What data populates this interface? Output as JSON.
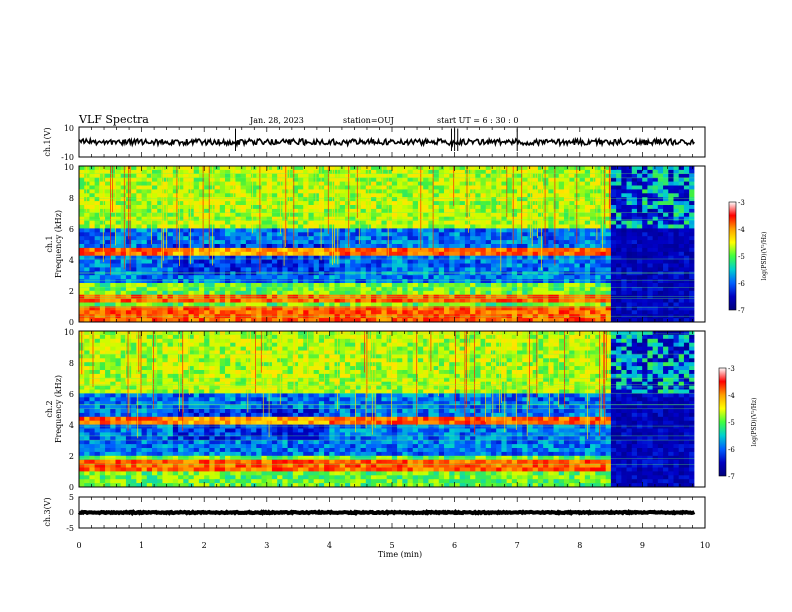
{
  "header": {
    "title": "VLF Spectra",
    "date": "Jan. 28, 2023",
    "station": "station=OUJ",
    "start": "start  UT =  6 : 30 : 0"
  },
  "colorbars": [
    {
      "label": "log(PSD)(V²/Hz)",
      "ticks": [
        "-3",
        "-4",
        "-5",
        "-6",
        "-7"
      ],
      "colors": [
        "#ffffff",
        "#ff0000",
        "#ffa000",
        "#ffff00",
        "#40ff40",
        "#00d0d0",
        "#0060ff",
        "#0000c0",
        "#00007a"
      ]
    },
    {
      "label": "log(PSD)(V²/Hz)",
      "ticks": [
        "-3",
        "-4",
        "-5",
        "-6",
        "-7"
      ],
      "colors": [
        "#ffffff",
        "#ff0000",
        "#ffa000",
        "#ffff00",
        "#40ff40",
        "#00d0d0",
        "#0060ff",
        "#0000c0",
        "#00007a"
      ]
    }
  ],
  "chart_data": [
    {
      "type": "line",
      "panel": "ch1_waveform",
      "ylabel": "ch.1(V)",
      "yticks": [
        "10",
        "-10"
      ],
      "ylim": [
        -10,
        10
      ],
      "x_range_min": [
        0,
        10
      ],
      "baseline": 0,
      "trace_color": "#000000"
    },
    {
      "type": "heatmap",
      "panel": "ch1_spectrogram",
      "ylabel": "ch.1 Frequency (kHz)",
      "ylabel_top": "ch.1",
      "ylabel_bottom": "Frequency (kHz)",
      "yticks": [
        "10",
        "8",
        "6",
        "4",
        "2",
        "0"
      ],
      "ylim_khz": [
        0,
        10
      ],
      "xlim_min": [
        0,
        10
      ],
      "data_end_min": 9.83,
      "quiet_after_min": 8.5,
      "colorscale": "log(PSD)(V²/Hz)",
      "zlim": [
        -7,
        -3
      ],
      "strong_bands_khz": [
        0.3,
        0.8,
        1.4,
        1.6,
        4.5
      ],
      "quiet_band_khz": [
        2.5,
        6.0
      ]
    },
    {
      "type": "heatmap",
      "panel": "ch2_spectrogram",
      "ylabel": "ch.2 Frequency (kHz)",
      "ylabel_top": "ch.2",
      "ylabel_bottom": "Frequency (kHz)",
      "yticks": [
        "10",
        "8",
        "6",
        "4",
        "2",
        "0"
      ],
      "ylim_khz": [
        0,
        10
      ],
      "xlim_min": [
        0,
        10
      ],
      "data_end_min": 9.83,
      "quiet_after_min": 8.5,
      "colorscale": "log(PSD)(V²/Hz)",
      "zlim": [
        -7,
        -3
      ],
      "strong_bands_khz": [
        1.3,
        1.6,
        4.2
      ],
      "quiet_band_khz": [
        2.0,
        6.0
      ]
    },
    {
      "type": "line",
      "panel": "ch3_waveform",
      "ylabel": "ch.3(V)",
      "yticks": [
        "5",
        "0",
        "-5"
      ],
      "ylim": [
        -5,
        5
      ],
      "xlim_min": [
        0,
        10
      ],
      "baseline": 0,
      "trace_color": "#000000",
      "xlabel": "Time (min)",
      "xticks": [
        "0",
        "1",
        "2",
        "3",
        "4",
        "5",
        "6",
        "7",
        "8",
        "9",
        "10"
      ]
    }
  ]
}
